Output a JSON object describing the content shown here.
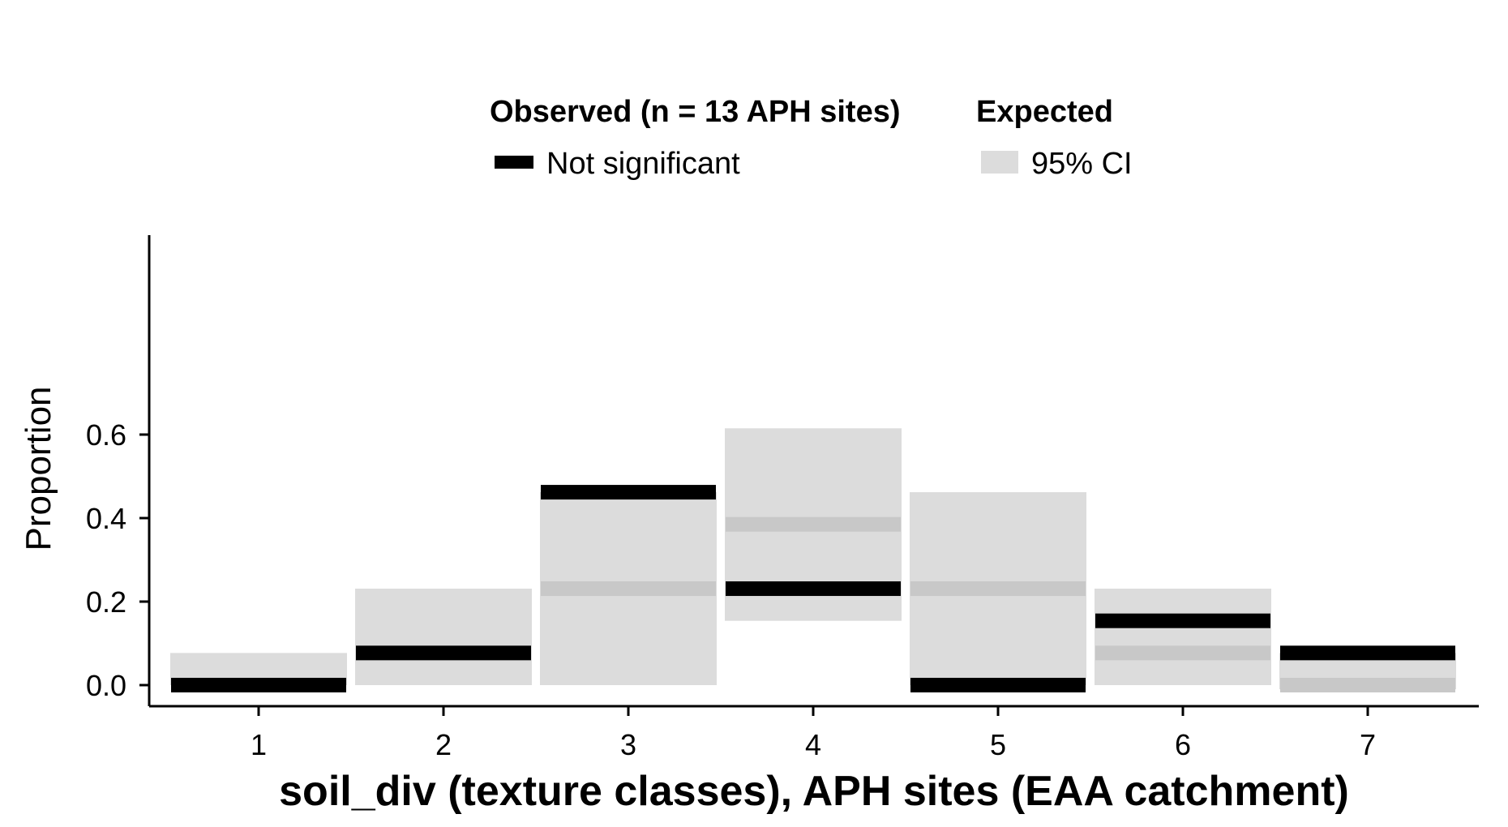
{
  "chart_data": {
    "type": "bar",
    "xlabel": "soil_div (texture classes), APH sites (EAA catchment)",
    "ylabel": "Proportion",
    "ylim": [
      -0.03,
      0.65
    ],
    "yticks": [
      0.0,
      0.2,
      0.4,
      0.6
    ],
    "ytick_labels": [
      "0.0",
      "0.2",
      "0.4",
      "0.6"
    ],
    "categories": [
      "1",
      "2",
      "3",
      "4",
      "5",
      "6",
      "7"
    ],
    "expected_ci_lower": [
      0.0,
      0.0,
      0.0,
      0.154,
      0.0,
      0.0,
      -0.01
    ],
    "expected_ci_upper": [
      0.077,
      0.231,
      0.462,
      0.615,
      0.462,
      0.231,
      0.077
    ],
    "expected_mean": [
      null,
      null,
      0.231,
      0.385,
      0.231,
      0.077,
      0.0
    ],
    "observed": [
      0.0,
      0.077,
      0.462,
      0.231,
      0.0,
      0.154,
      0.077
    ],
    "observed_status": [
      "Not significant",
      "Not significant",
      "Not significant",
      "Not significant",
      "Not significant",
      "Not significant",
      "Not significant"
    ],
    "grid": false,
    "legend_position": "top",
    "legend": {
      "observed_title": "Observed (n = 13 APH sites)",
      "observed_entry": "Not significant",
      "expected_title": "Expected",
      "expected_entry": "95% CI"
    },
    "colors": {
      "observed": "#000000",
      "ci_fill": "#dcdcdc",
      "expected_mean": "#c8c8c8",
      "axis": "#000000"
    }
  }
}
